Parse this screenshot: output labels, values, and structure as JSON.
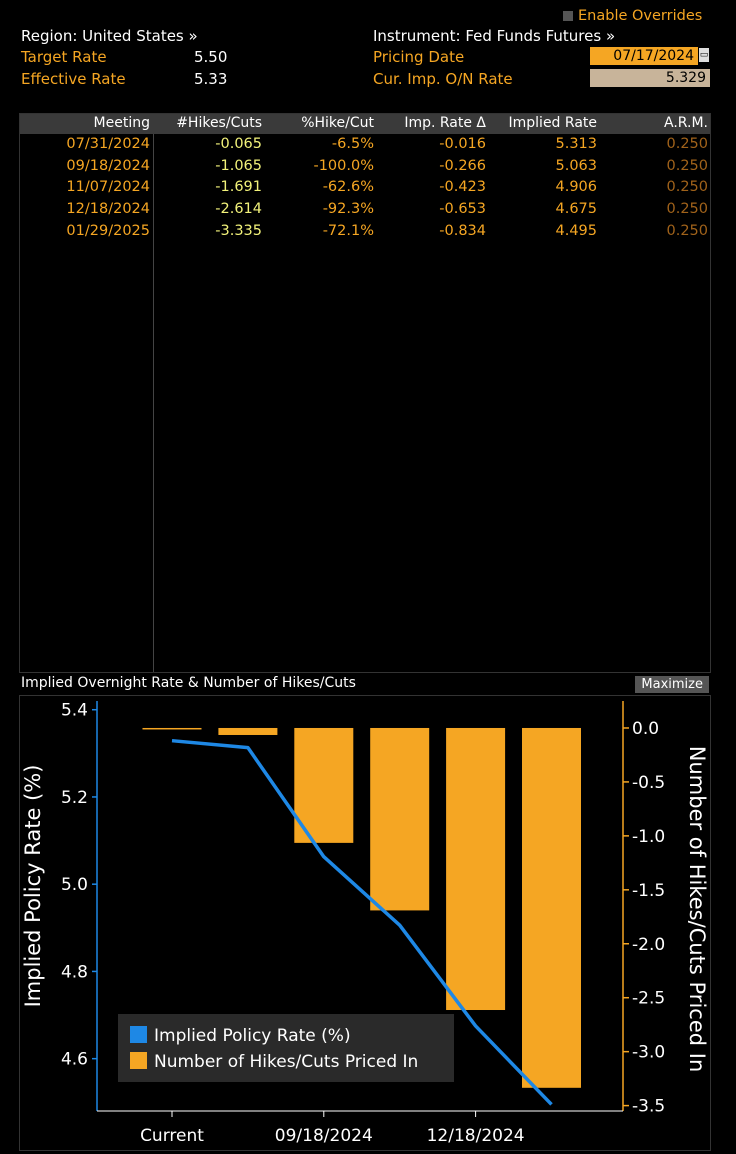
{
  "header": {
    "enable_overrides_label": "Enable Overrides",
    "region_label": "Region: United States »",
    "instrument_label": "Instrument: Fed Funds Futures »",
    "target_rate_label": "Target Rate",
    "target_rate_value": "5.50",
    "effective_rate_label": "Effective Rate",
    "effective_rate_value": "5.33",
    "pricing_date_label": "Pricing Date",
    "pricing_date_value": "07/17/2024",
    "cur_imp_label": "Cur. Imp. O/N Rate",
    "cur_imp_value": "5.329"
  },
  "table": {
    "columns": [
      "Meeting",
      "#Hikes/Cuts",
      "%Hike/Cut",
      "Imp. Rate Δ",
      "Implied Rate",
      "A.R.M."
    ],
    "rows": [
      [
        "07/31/2024",
        "-0.065",
        "-6.5%",
        "-0.016",
        "5.313",
        "0.250"
      ],
      [
        "09/18/2024",
        "-1.065",
        "-100.0%",
        "-0.266",
        "5.063",
        "0.250"
      ],
      [
        "11/07/2024",
        "-1.691",
        "-62.6%",
        "-0.423",
        "4.906",
        "0.250"
      ],
      [
        "12/18/2024",
        "-2.614",
        "-92.3%",
        "-0.653",
        "4.675",
        "0.250"
      ],
      [
        "01/29/2025",
        "-3.335",
        "-72.1%",
        "-0.834",
        "4.495",
        "0.250"
      ]
    ]
  },
  "chart_panel": {
    "title": "Implied Overnight Rate & Number of Hikes/Cuts",
    "maximize_label": "Maximize"
  },
  "chart_data": {
    "type": "bar",
    "categories": [
      "Current",
      "07/31/2024",
      "09/18/2024",
      "11/07/2024",
      "12/18/2024",
      "01/29/2025"
    ],
    "x_tick_labels": [
      "Current",
      "09/18/2024",
      "12/18/2024"
    ],
    "series": [
      {
        "name": "Implied Policy Rate (%)",
        "type": "line",
        "axis": "left",
        "color": "#1e88e5",
        "values": [
          5.329,
          5.313,
          5.063,
          4.906,
          4.675,
          4.495
        ]
      },
      {
        "name": "Number of Hikes/Cuts Priced In",
        "type": "bar",
        "axis": "right",
        "color": "#f5a623",
        "values": [
          0.0,
          -0.065,
          -1.065,
          -1.691,
          -2.614,
          -3.335
        ]
      }
    ],
    "ylabel": "Implied Policy Rate (%)",
    "y2label": "Number of Hikes/Cuts Priced In",
    "ylim": [
      4.48,
      5.42
    ],
    "y_ticks": [
      4.6,
      4.8,
      5.0,
      5.2,
      5.4
    ],
    "y2lim": [
      -3.55,
      0.25
    ],
    "y2_ticks": [
      0.0,
      -0.5,
      -1.0,
      -1.5,
      -2.0,
      -2.5,
      -3.0,
      -3.5
    ],
    "legend_position": "bottom-left"
  },
  "colors": {
    "accent": "#f5a623",
    "line": "#1e88e5",
    "axis": "#1e88e5",
    "header_bg": "#3a3a3a"
  }
}
